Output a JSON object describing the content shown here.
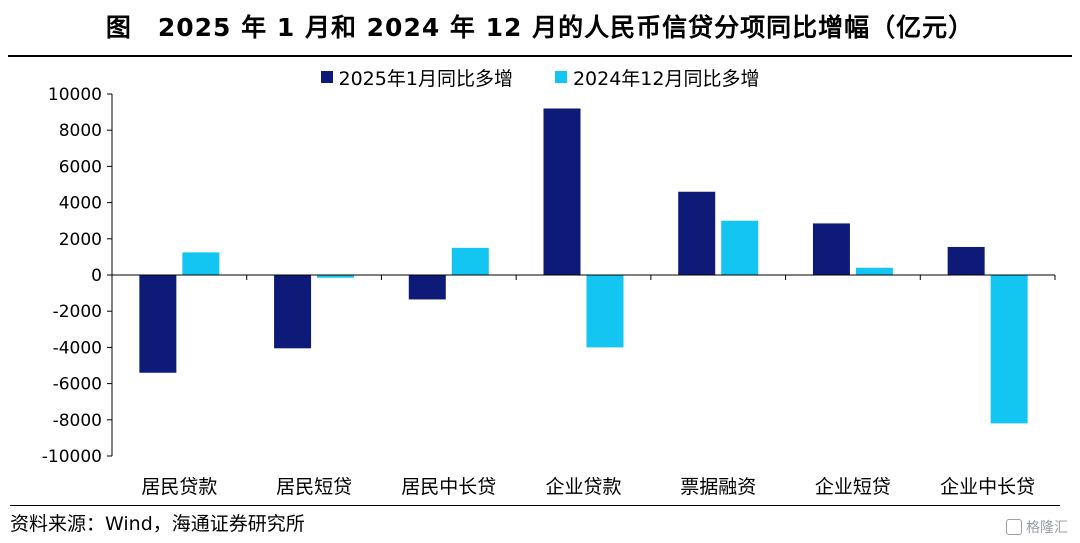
{
  "title": "图　2025 年 1 月和 2024 年 12 月的人民币信贷分项同比增幅（亿元）",
  "source": "资料来源：Wind，海通证券研究所",
  "watermark": "格隆汇",
  "colors": {
    "series1": "#0e1a78",
    "series2": "#13c6f2",
    "axis": "#000000"
  },
  "chart_data": {
    "type": "bar",
    "title": "2025 年 1 月和 2024 年 12 月的人民币信贷分项同比增幅（亿元）",
    "categories": [
      "居民贷款",
      "居民短贷",
      "居民中长贷",
      "企业贷款",
      "票据融资",
      "企业短贷",
      "企业中长贷"
    ],
    "series": [
      {
        "name": "2025年1月同比多增",
        "values": [
          -5400,
          -4050,
          -1350,
          9200,
          4600,
          2850,
          1550
        ]
      },
      {
        "name": "2024年12月同比多增",
        "values": [
          1250,
          -150,
          1500,
          -4000,
          3000,
          400,
          -8200
        ]
      }
    ],
    "ylim": [
      -10000,
      10000
    ],
    "yticks": [
      "10000",
      "8000",
      "6000",
      "4000",
      "2000",
      "0",
      "-2000",
      "-4000",
      "-6000",
      "-8000",
      "-10000"
    ],
    "xlabel": "",
    "ylabel": "",
    "grid": false,
    "legend_position": "top"
  }
}
